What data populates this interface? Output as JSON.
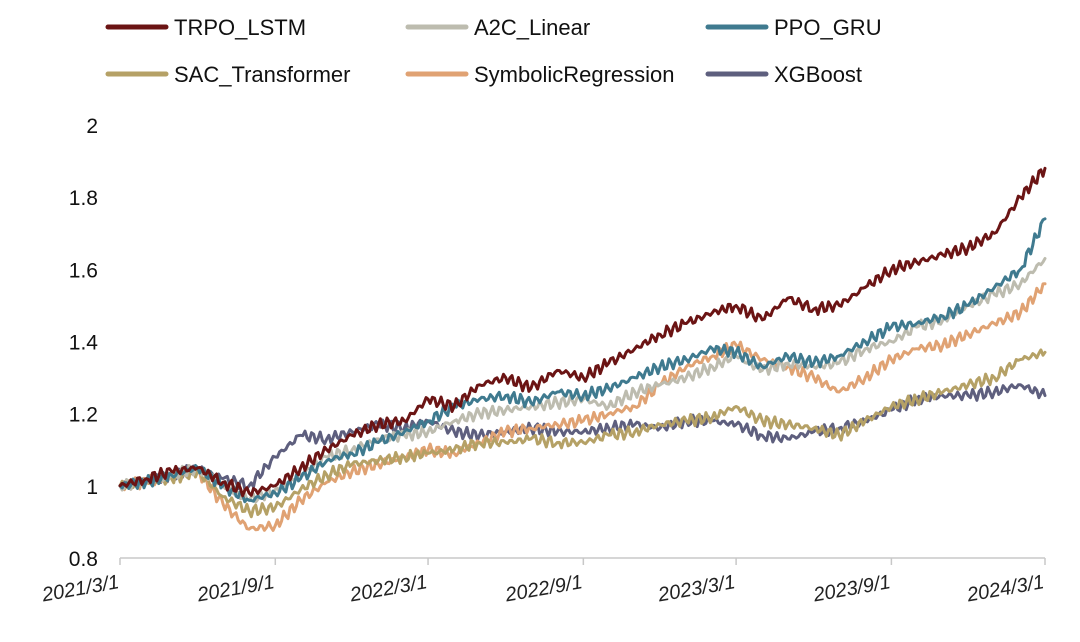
{
  "chart_data": {
    "type": "line",
    "title": "",
    "xlabel": "",
    "ylabel": "",
    "ylim": [
      0.8,
      2.0
    ],
    "yticks": [
      "0.8",
      "1",
      "1.2",
      "1.4",
      "1.6",
      "1.8",
      "2"
    ],
    "xticks": [
      "2021/3/1",
      "2021/9/1",
      "2022/3/1",
      "2022/9/1",
      "2023/3/1",
      "2023/9/1",
      "2024/3/1"
    ],
    "grid": false,
    "legend_position": "top",
    "x": [
      "2021/3/1",
      "2021/4/1",
      "2021/5/1",
      "2021/6/1",
      "2021/7/1",
      "2021/8/1",
      "2021/9/1",
      "2021/10/1",
      "2021/11/1",
      "2021/12/1",
      "2022/1/1",
      "2022/2/1",
      "2022/3/1",
      "2022/4/1",
      "2022/5/1",
      "2022/6/1",
      "2022/7/1",
      "2022/8/1",
      "2022/9/1",
      "2022/10/1",
      "2022/11/1",
      "2022/12/1",
      "2023/1/1",
      "2023/2/1",
      "2023/3/1",
      "2023/4/1",
      "2023/5/1",
      "2023/6/1",
      "2023/7/1",
      "2023/8/1",
      "2023/9/1",
      "2023/10/1",
      "2023/11/1",
      "2023/12/1",
      "2024/1/1",
      "2024/2/1",
      "2024/3/1"
    ],
    "series": [
      {
        "name": "TRPO_LSTM",
        "color": "#6b1414",
        "values": [
          1.0,
          1.02,
          1.04,
          1.05,
          1.01,
          0.98,
          1.0,
          1.05,
          1.1,
          1.14,
          1.17,
          1.18,
          1.24,
          1.22,
          1.28,
          1.3,
          1.27,
          1.32,
          1.3,
          1.34,
          1.38,
          1.42,
          1.45,
          1.48,
          1.5,
          1.46,
          1.52,
          1.49,
          1.5,
          1.55,
          1.6,
          1.62,
          1.64,
          1.66,
          1.7,
          1.8,
          1.88
        ]
      },
      {
        "name": "A2C_Linear",
        "color": "#bdbcaf",
        "values": [
          1.0,
          1.01,
          1.03,
          1.05,
          1.0,
          0.96,
          0.99,
          1.03,
          1.08,
          1.1,
          1.13,
          1.14,
          1.15,
          1.18,
          1.2,
          1.21,
          1.22,
          1.23,
          1.24,
          1.22,
          1.26,
          1.28,
          1.3,
          1.33,
          1.36,
          1.32,
          1.34,
          1.33,
          1.34,
          1.38,
          1.4,
          1.44,
          1.46,
          1.5,
          1.53,
          1.56,
          1.63
        ]
      },
      {
        "name": "PPO_GRU",
        "color": "#3f7a8f",
        "values": [
          1.0,
          1.01,
          1.03,
          1.05,
          1.0,
          0.96,
          0.98,
          1.02,
          1.07,
          1.09,
          1.12,
          1.15,
          1.18,
          1.22,
          1.24,
          1.25,
          1.23,
          1.26,
          1.25,
          1.27,
          1.3,
          1.33,
          1.35,
          1.38,
          1.37,
          1.33,
          1.36,
          1.34,
          1.36,
          1.4,
          1.44,
          1.45,
          1.47,
          1.5,
          1.55,
          1.6,
          1.74
        ]
      },
      {
        "name": "SAC_Transformer",
        "color": "#b5a166",
        "values": [
          1.0,
          1.01,
          1.02,
          1.04,
          0.97,
          0.93,
          0.94,
          0.99,
          1.03,
          1.06,
          1.07,
          1.08,
          1.09,
          1.1,
          1.12,
          1.12,
          1.13,
          1.12,
          1.12,
          1.14,
          1.15,
          1.17,
          1.18,
          1.19,
          1.22,
          1.18,
          1.17,
          1.16,
          1.14,
          1.18,
          1.22,
          1.24,
          1.26,
          1.28,
          1.3,
          1.35,
          1.37
        ]
      },
      {
        "name": "SymbolicRegression",
        "color": "#e0a273",
        "values": [
          1.0,
          1.01,
          1.03,
          1.04,
          0.95,
          0.88,
          0.89,
          0.96,
          1.01,
          1.04,
          1.06,
          1.08,
          1.1,
          1.09,
          1.12,
          1.15,
          1.16,
          1.17,
          1.18,
          1.2,
          1.22,
          1.28,
          1.33,
          1.36,
          1.39,
          1.35,
          1.33,
          1.3,
          1.26,
          1.3,
          1.35,
          1.38,
          1.39,
          1.42,
          1.45,
          1.48,
          1.56
        ]
      },
      {
        "name": "XGBoost",
        "color": "#5e5f7e",
        "values": [
          1.0,
          1.01,
          1.03,
          1.05,
          1.02,
          1.0,
          1.08,
          1.14,
          1.13,
          1.15,
          1.17,
          1.16,
          1.18,
          1.15,
          1.14,
          1.15,
          1.16,
          1.15,
          1.15,
          1.16,
          1.17,
          1.16,
          1.18,
          1.18,
          1.17,
          1.14,
          1.13,
          1.15,
          1.16,
          1.18,
          1.21,
          1.24,
          1.25,
          1.25,
          1.26,
          1.28,
          1.25
        ]
      }
    ]
  }
}
